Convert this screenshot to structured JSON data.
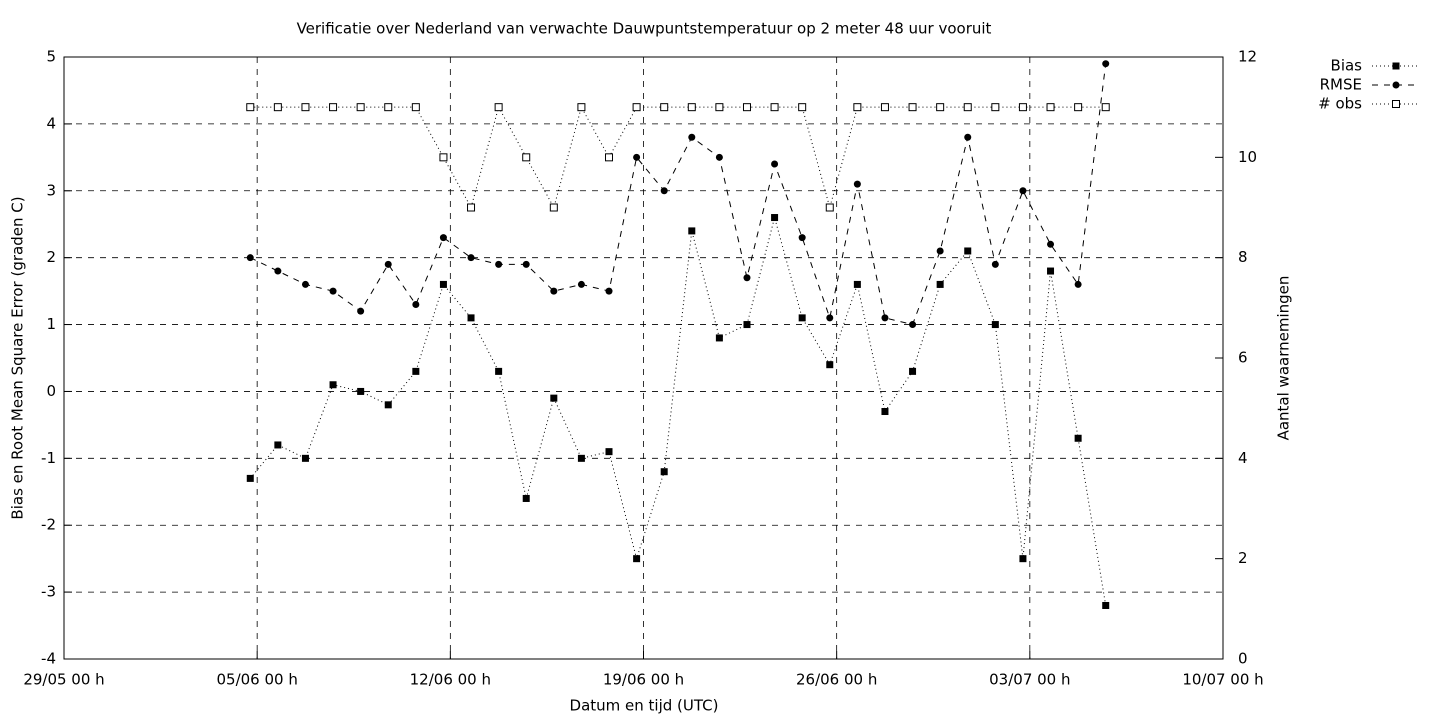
{
  "chart_data": {
    "type": "line",
    "title": "Verificatie over Nederland van verwachte Dauwpuntstemperatuur op 2 meter 48 uur vooruit",
    "xlabel": "Datum en tijd (UTC)",
    "ylabel": "Bias en Root Mean Square Error (graden C)",
    "y2label": "Aantal waarnemingen",
    "x": [
      "04/06 18 h",
      "05/06 18 h",
      "06/06 18 h",
      "07/06 18 h",
      "08/06 18 h",
      "09/06 18 h",
      "10/06 18 h",
      "11/06 18 h",
      "12/06 18 h",
      "13/06 18 h",
      "14/06 18 h",
      "15/06 18 h",
      "16/06 18 h",
      "17/06 18 h",
      "18/06 18 h",
      "19/06 18 h",
      "20/06 18 h",
      "21/06 18 h",
      "22/06 18 h",
      "23/06 18 h",
      "24/06 18 h",
      "25/06 18 h",
      "26/06 18 h",
      "27/06 18 h",
      "28/06 18 h",
      "29/06 18 h",
      "30/06 18 h",
      "01/07 18 h",
      "02/07 18 h",
      "03/07 18 h",
      "04/07 18 h",
      "05/07 18 h"
    ],
    "series": [
      {
        "name": "Bias",
        "color": "#000000",
        "axis": "y",
        "marker": "square",
        "line": "dotted",
        "values": [
          -1.3,
          -0.8,
          -1.0,
          0.1,
          0.0,
          -0.2,
          0.3,
          1.6,
          1.1,
          0.3,
          -1.6,
          -0.1,
          -1.0,
          -0.9,
          -2.5,
          -1.2,
          2.4,
          0.8,
          1.0,
          2.6,
          1.1,
          0.4,
          1.6,
          -0.3,
          0.3,
          1.6,
          2.1,
          1.0,
          -2.5,
          1.8,
          -0.7,
          -3.2
        ]
      },
      {
        "name": "RMSE",
        "color": "#000000",
        "axis": "y",
        "marker": "circle",
        "line": "dashed",
        "values": [
          2.0,
          1.8,
          1.6,
          1.5,
          1.2,
          1.9,
          1.3,
          2.3,
          2.0,
          1.9,
          1.9,
          1.5,
          1.6,
          1.5,
          3.5,
          3.0,
          3.8,
          3.5,
          1.7,
          3.4,
          2.3,
          1.1,
          3.1,
          1.1,
          1.0,
          2.1,
          3.8,
          1.9,
          3.0,
          2.2,
          1.6,
          4.9
        ]
      },
      {
        "name": "# obs",
        "color": "#000000",
        "axis": "y2",
        "marker": "open-square",
        "line": "dotted",
        "values": [
          11,
          11,
          11,
          11,
          11,
          11,
          11,
          10,
          9,
          11,
          10,
          9,
          11,
          10,
          11,
          11,
          11,
          11,
          11,
          11,
          11,
          9,
          11,
          11,
          11,
          11,
          11,
          11,
          11,
          11,
          11,
          11
        ]
      }
    ],
    "xlim": [
      "29/05 00 h",
      "10/07 00 h"
    ],
    "xticks": [
      "29/05 00 h",
      "05/06 00 h",
      "12/06 00 h",
      "19/06 00 h",
      "26/06 00 h",
      "03/07 00 h",
      "10/07 00 h"
    ],
    "ylim": [
      -4,
      5
    ],
    "yticks": [
      -4,
      -3,
      -2,
      -1,
      0,
      1,
      2,
      3,
      4,
      5
    ],
    "y2lim": [
      0,
      12
    ],
    "y2ticks": [
      0,
      2,
      4,
      6,
      8,
      10,
      12
    ],
    "grid": true,
    "legend": "outside-top-right"
  }
}
